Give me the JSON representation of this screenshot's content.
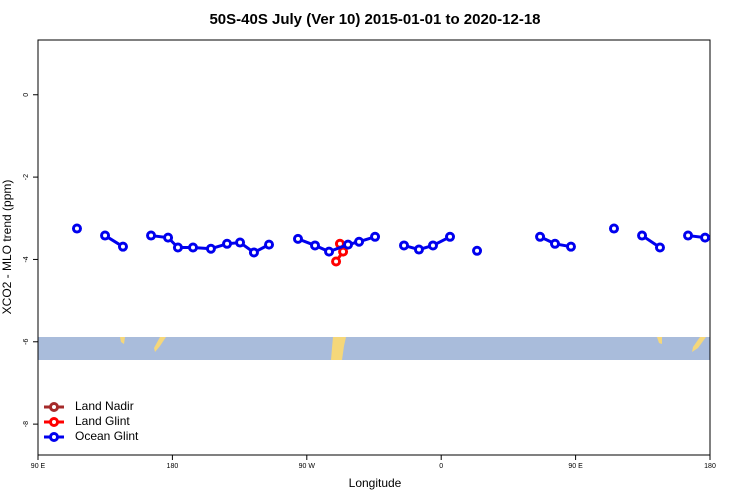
{
  "chart_data": {
    "type": "line",
    "title": "50S-40S July (Ver 10)   2015-01-01 to 2020-12-18",
    "x_label": "Longitude",
    "y_label": "XCO2 - MLO trend (ppm)",
    "xlim": [
      90,
      540
    ],
    "xticks": [
      {
        "value": 90,
        "label": "90 E"
      },
      180,
      {
        "value": 270,
        "label": "90 W"
      },
      {
        "value": 360,
        "label": "0"
      },
      {
        "value": 450,
        "label": "90 E"
      },
      {
        "value": 540,
        "label": "180"
      }
    ],
    "ylim": [
      -8.75,
      1.33
    ],
    "yticks": [
      0,
      -2,
      -4,
      -6,
      -8
    ],
    "legend": "bottom-left",
    "series": [
      {
        "name": "Land Nadir",
        "color": "#a52a2a",
        "x": [],
        "values": []
      },
      {
        "name": "Land Glint",
        "color": "#ff0000",
        "x": [
          292.2,
          294.3,
          289.6
        ],
        "values": [
          -3.62,
          -3.81,
          -4.05
        ]
      },
      {
        "name": "Ocean Glint",
        "color": "#0000ee",
        "x": [
          116.1,
          null,
          134.9,
          146.9,
          null,
          165.7,
          177.1,
          183.7,
          193.8,
          205.8,
          216.6,
          225.3,
          234.6,
          244.7,
          null,
          264.1,
          275.5,
          284.9,
          297.6,
          305.0,
          315.7,
          null,
          335.1,
          345.1,
          354.5,
          365.9,
          null,
          384.0,
          null,
          426.2,
          436.2,
          446.9,
          null,
          475.7,
          null,
          494.5,
          506.5,
          null,
          525.3,
          536.7
        ],
        "values": [
          -3.25,
          null,
          -3.42,
          -3.69,
          null,
          -3.42,
          -3.47,
          -3.71,
          -3.71,
          -3.74,
          -3.62,
          -3.59,
          -3.83,
          -3.64,
          null,
          -3.5,
          -3.66,
          -3.81,
          -3.64,
          -3.57,
          -3.45,
          null,
          -3.66,
          -3.76,
          -3.66,
          -3.45,
          null,
          -3.79,
          null,
          -3.45,
          -3.62,
          -3.69,
          null,
          -3.25,
          null,
          -3.42,
          -3.71,
          null,
          -3.42,
          -3.47
        ]
      }
    ]
  }
}
